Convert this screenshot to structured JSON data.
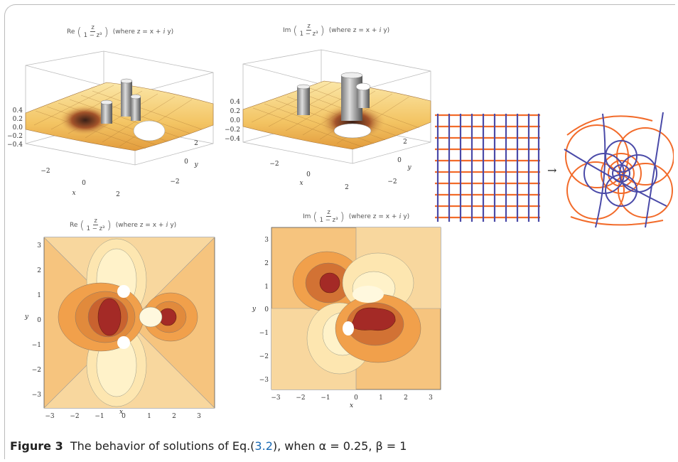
{
  "plots": {
    "surface_re": {
      "func": "Re",
      "numerator": "z",
      "denominator": "1 − z³",
      "where": "(where z = x + ⅈ y)",
      "z_ticks": [
        "0.4",
        "0.2",
        "0.0",
        "−0.2",
        "−0.4"
      ],
      "x_ticks": [
        "−2",
        "0",
        "2"
      ],
      "y_ticks": [
        "2",
        "0",
        "−2"
      ],
      "x_label": "x",
      "y_label": "y"
    },
    "surface_im": {
      "func": "Im",
      "numerator": "z",
      "denominator": "1 − z³",
      "where": "(where z = x + ⅈ y)",
      "z_ticks": [
        "0.4",
        "0.2",
        "0.0",
        "−0.2",
        "−0.4"
      ],
      "x_ticks": [
        "−2",
        "0",
        "2"
      ],
      "y_ticks": [
        "2",
        "0",
        "−2"
      ],
      "x_label": "x",
      "y_label": "y"
    },
    "contour_re": {
      "func": "Re",
      "numerator": "z",
      "denominator": "1 − z³",
      "where": "(where z = x + ⅈ y)",
      "x_ticks": [
        "−3",
        "−2",
        "−1",
        "0",
        "1",
        "2",
        "3"
      ],
      "y_ticks": [
        "3",
        "2",
        "1",
        "0",
        "−1",
        "−2",
        "−3"
      ],
      "x_label": "x",
      "y_label": "y"
    },
    "contour_im": {
      "func": "Im",
      "numerator": "z",
      "denominator": "1 − z³",
      "where": "(where z = x + ⅈ y)",
      "x_ticks": [
        "−3",
        "−2",
        "−1",
        "0",
        "1",
        "2",
        "3"
      ],
      "y_ticks": [
        "3",
        "2",
        "1",
        "0",
        "−1",
        "−2",
        "−3"
      ],
      "x_label": "x",
      "y_label": "y"
    },
    "mapping": {
      "arrow": "→",
      "orange": "#f26b2a",
      "blue": "#4a4aa8"
    }
  },
  "caption": {
    "label": "Figure 3",
    "text_before": "The behavior of solutions of Eq.(",
    "ref": "3.2",
    "text_after": "), when α = 0.25, β = 1"
  },
  "colors": {
    "dark_red": "#a42a26",
    "orange": "#f1a04b",
    "light": "#fff3c8",
    "bg_contour": "#f6c47e"
  }
}
